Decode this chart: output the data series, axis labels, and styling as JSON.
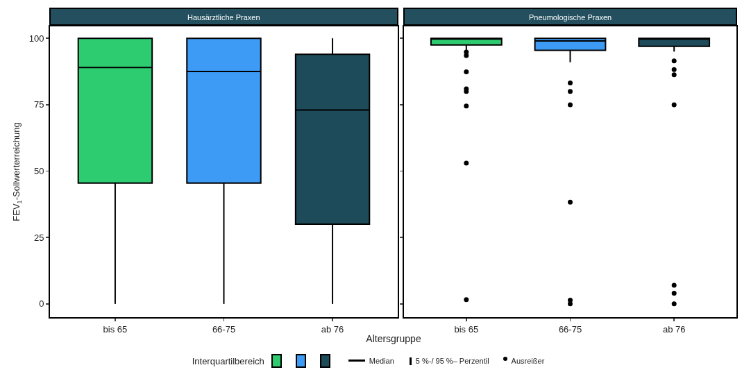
{
  "chart_data": [
    {
      "type": "box",
      "title": "Hausärztliche Praxen",
      "categories": [
        "bis 65",
        "66-75",
        "ab 76"
      ],
      "colors": [
        "#2ecc71",
        "#3d9bf6",
        "#1d4b5a"
      ],
      "boxes": [
        {
          "low": 0,
          "q1": 45.5,
          "median": 89,
          "q3": 100,
          "high": 100
        },
        {
          "low": 0,
          "q1": 45.5,
          "median": 87.5,
          "q3": 100,
          "high": 100
        },
        {
          "low": 0,
          "q1": 30,
          "median": 73,
          "q3": 94,
          "high": 100
        }
      ],
      "ylim": [
        -5,
        104.5
      ],
      "yticks": [
        0,
        25,
        50,
        75,
        100
      ],
      "ylabel": "FEV$_{1}$-Sollwerterreichung",
      "xlabel": "Altersgruppe",
      "grid": false,
      "legend_title": "Interquartilbereich",
      "annotations": [
        "Median",
        "5 %-/ 95 %– Perzentil",
        "Ausreißer"
      ]
    },
    {
      "type": "box",
      "title": "Pneumologische Praxen",
      "categories": [
        "bis 65",
        "66-75",
        "ab 76"
      ],
      "colors": [
        "#2ecc71",
        "#3d9bf6",
        "#1d4b5a"
      ],
      "boxes": [
        {
          "low": 95,
          "q1": 97.5,
          "median": 100,
          "q3": 100,
          "high": 100,
          "outliers": [
            94.8,
            93.5,
            87.4,
            81,
            80,
            74.5,
            53,
            1.6
          ]
        },
        {
          "low": 91,
          "q1": 95.5,
          "median": 99,
          "q3": 100,
          "high": 100,
          "outliers": [
            83.2,
            80,
            75,
            38.3,
            1.4,
            0
          ]
        },
        {
          "low": 95,
          "q1": 97,
          "median": 100,
          "q3": 100,
          "high": 100,
          "outliers": [
            91.5,
            88.2,
            86.3,
            75,
            7,
            4,
            0
          ]
        }
      ],
      "ylim": [
        -5,
        104.5
      ],
      "yticks": [
        0,
        25,
        50,
        75,
        100
      ],
      "grid": false,
      "tick_labels": "x"
    }
  ]
}
